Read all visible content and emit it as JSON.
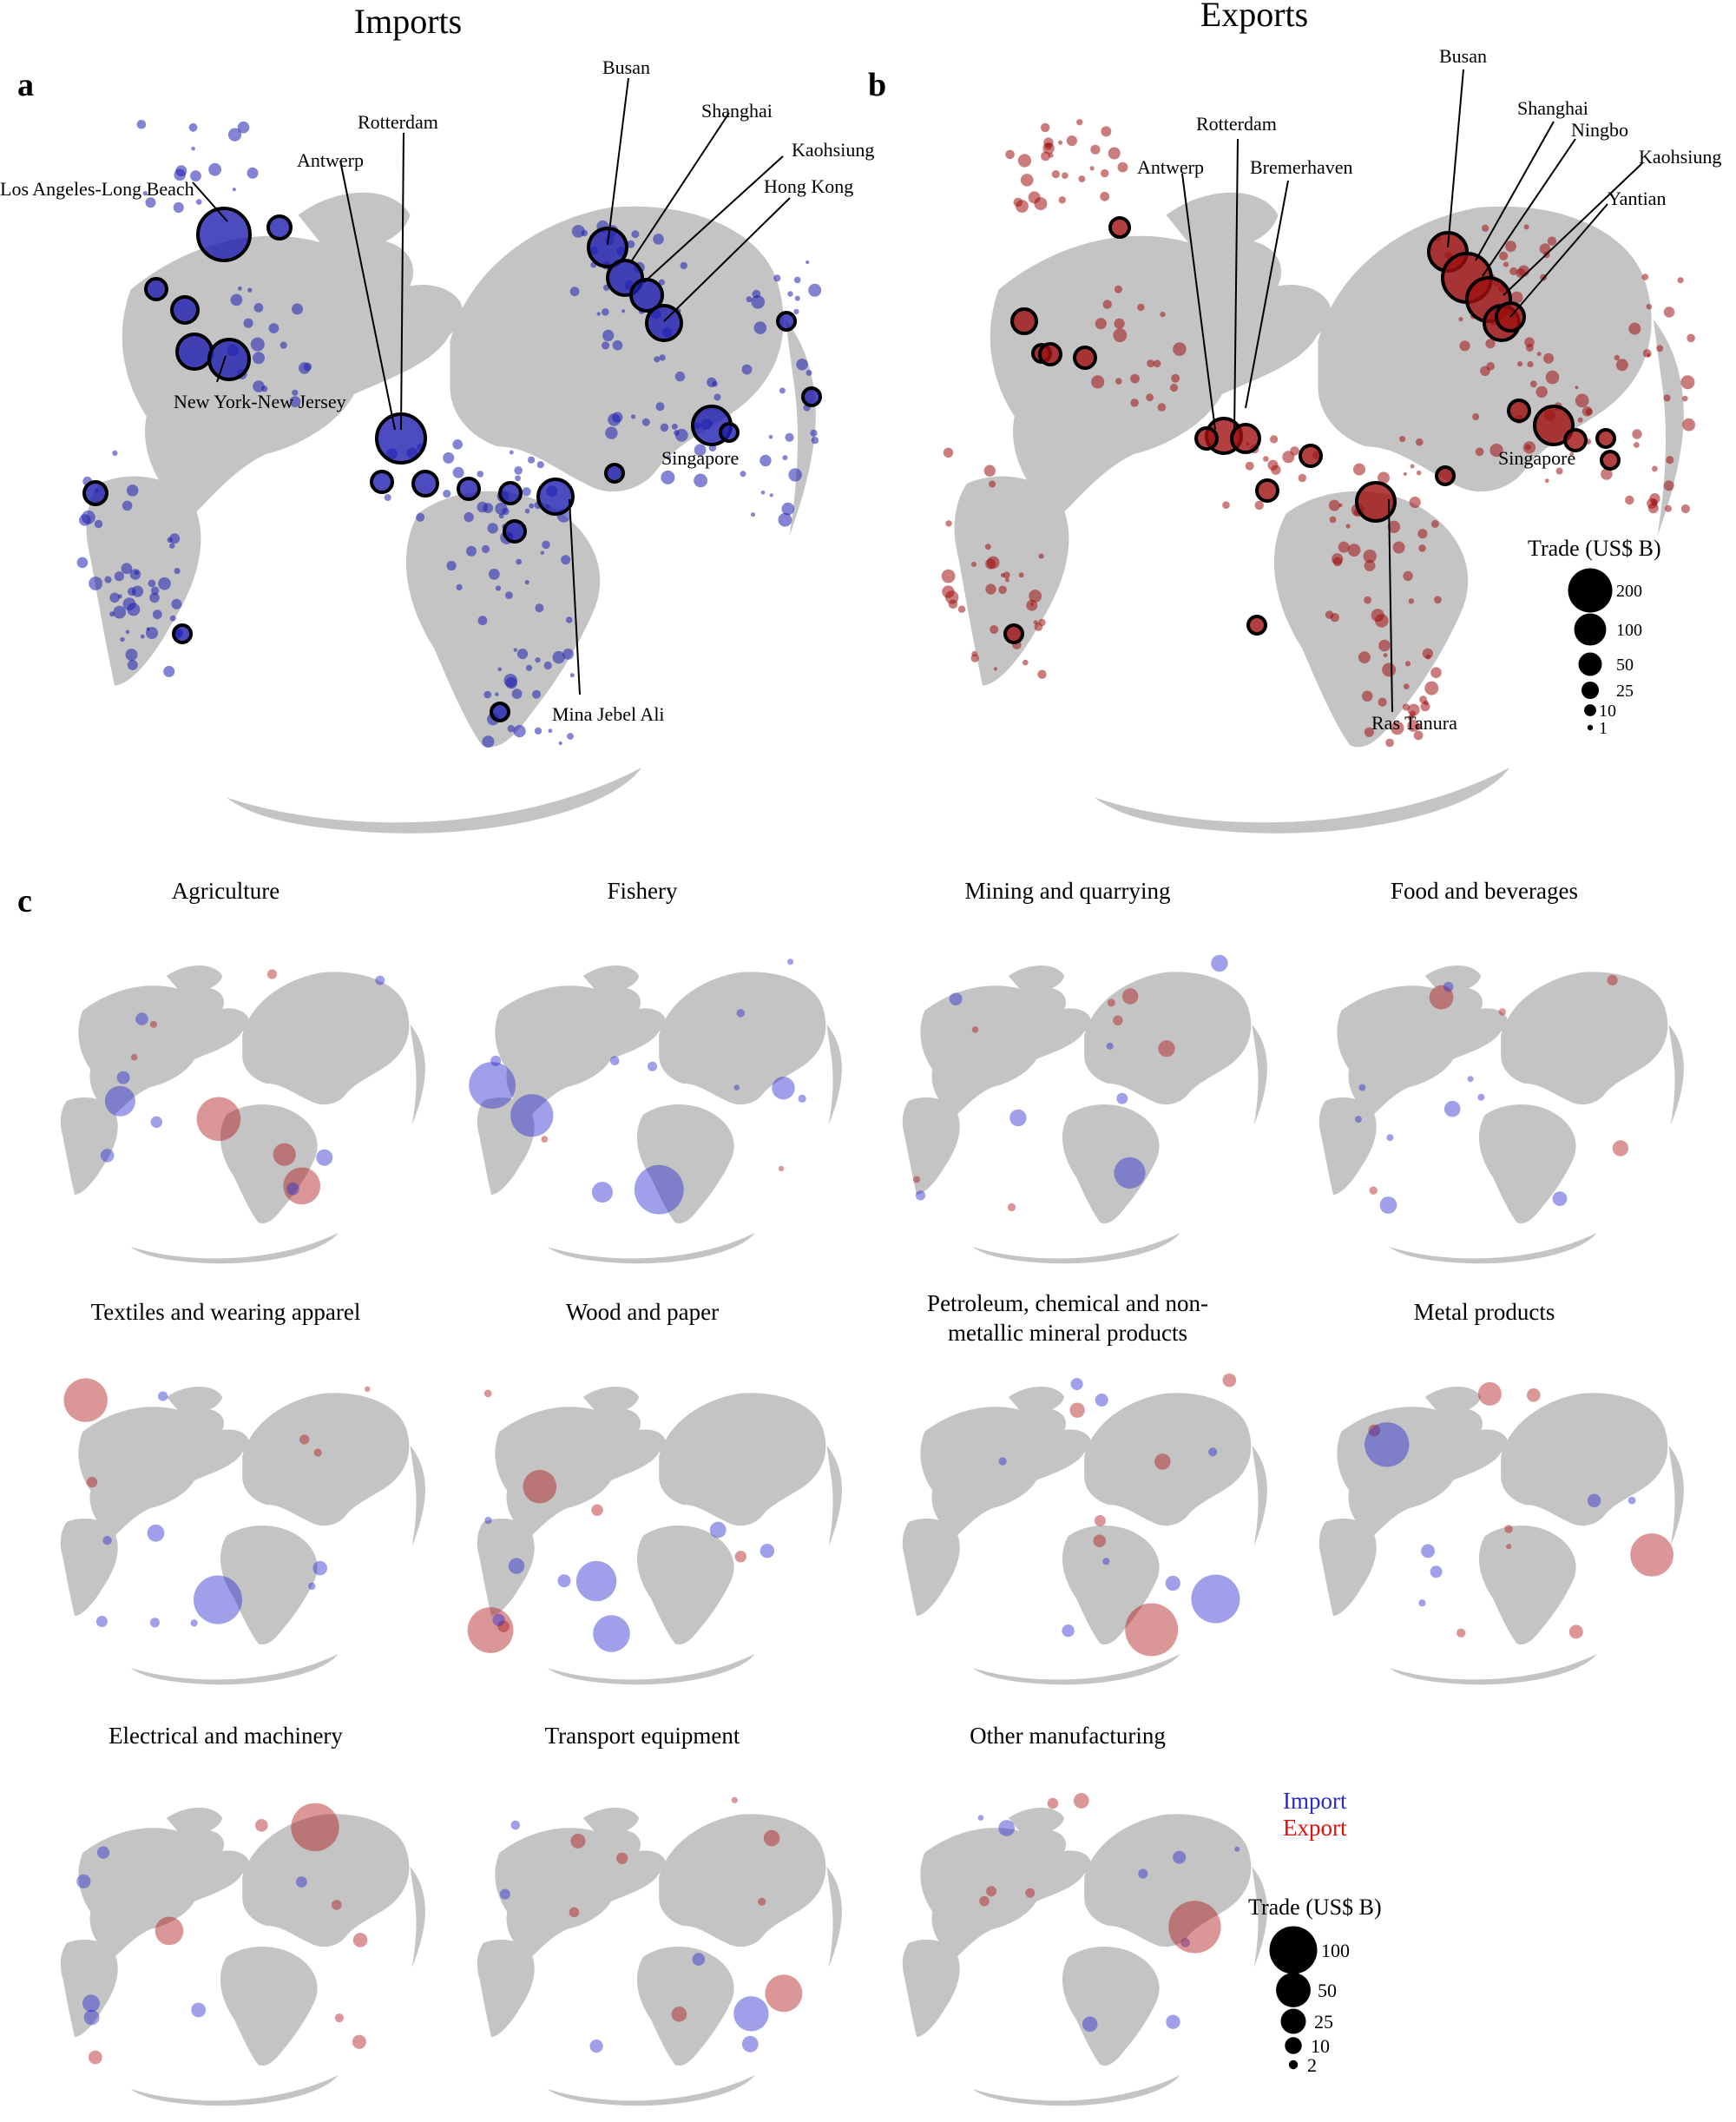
{
  "panel_a": {
    "letter": "a",
    "title": "Imports",
    "color": "#1f1fb0",
    "ports": [
      {
        "name": "Los Angeles-Long Beach"
      },
      {
        "name": "Antwerp"
      },
      {
        "name": "Rotterdam"
      },
      {
        "name": "Busan"
      },
      {
        "name": "Shanghai"
      },
      {
        "name": "Kaohsiung"
      },
      {
        "name": "Hong Kong"
      },
      {
        "name": "New York-New Jersey"
      },
      {
        "name": "Singapore"
      },
      {
        "name": "Mina Jebel Ali"
      }
    ]
  },
  "panel_b": {
    "letter": "b",
    "title": "Exports",
    "color": "#a01010",
    "ports": [
      {
        "name": "Busan"
      },
      {
        "name": "Rotterdam"
      },
      {
        "name": "Shanghai"
      },
      {
        "name": "Ningbo"
      },
      {
        "name": "Antwerp"
      },
      {
        "name": "Bremerhaven"
      },
      {
        "name": "Kaohsiung"
      },
      {
        "name": "Yantian"
      },
      {
        "name": "Singapore"
      },
      {
        "name": "Ras Tanura"
      }
    ],
    "legend": {
      "title": "Trade (US$ B)",
      "values": [
        200,
        100,
        50,
        25,
        10,
        1
      ]
    }
  },
  "panel_c": {
    "letter": "c",
    "sectors": [
      {
        "title": "Agriculture"
      },
      {
        "title": "Fishery"
      },
      {
        "title": "Mining and quarrying"
      },
      {
        "title": "Food and beverages"
      },
      {
        "title": "Textiles and wearing apparel"
      },
      {
        "title": "Wood and paper"
      },
      {
        "title": "Petroleum, chemical and non-",
        "title2": "metallic mineral products"
      },
      {
        "title": "Metal products"
      },
      {
        "title": "Electrical and machinery"
      },
      {
        "title": "Transport equipment"
      },
      {
        "title": "Other manufacturing"
      }
    ],
    "key": {
      "import": "Import",
      "export": "Export",
      "import_color": "#1f1fb0",
      "export_color": "#d01010"
    },
    "legend": {
      "title": "Trade (US$ B)",
      "values": [
        100,
        50,
        25,
        10,
        2
      ]
    }
  }
}
